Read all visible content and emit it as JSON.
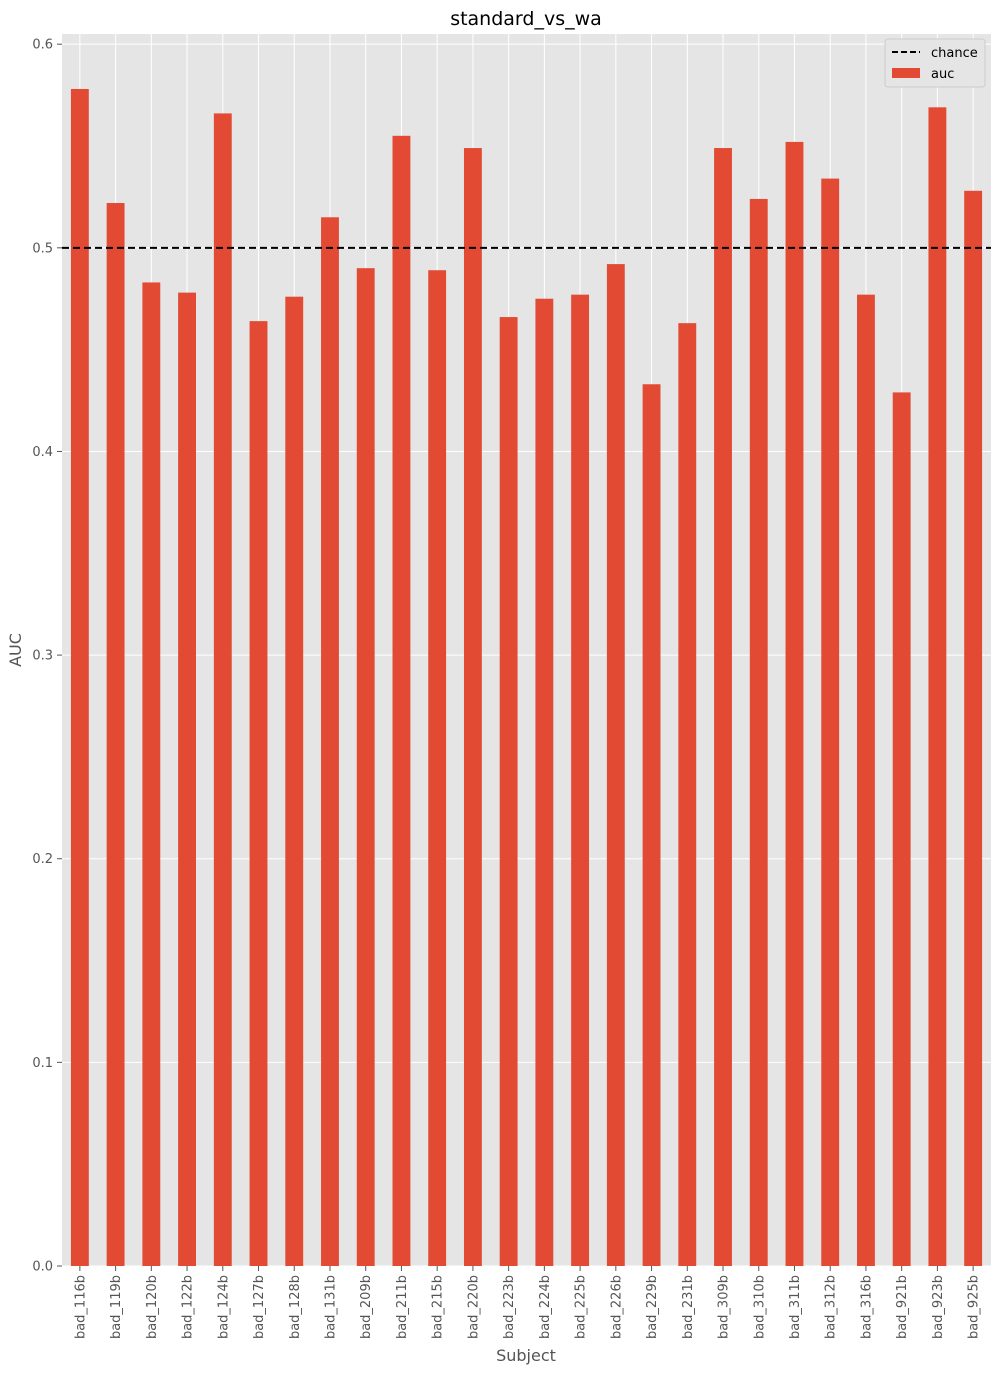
{
  "chart_data": {
    "type": "bar",
    "title": "standard_vs_wa",
    "xlabel": "Subject",
    "ylabel": "AUC",
    "ylim": [
      0,
      0.605
    ],
    "yticks": [
      0.0,
      0.1,
      0.2,
      0.3,
      0.4,
      0.5,
      0.6
    ],
    "ytick_labels": [
      "0.0",
      "0.1",
      "0.2",
      "0.3",
      "0.4",
      "0.5",
      "0.6"
    ],
    "grid": true,
    "legend_position": "top-right",
    "chance_level": 0.5,
    "categories": [
      "bad_116b",
      "bad_119b",
      "bad_120b",
      "bad_122b",
      "bad_124b",
      "bad_127b",
      "bad_128b",
      "bad_131b",
      "bad_209b",
      "bad_211b",
      "bad_215b",
      "bad_220b",
      "bad_223b",
      "bad_224b",
      "bad_225b",
      "bad_226b",
      "bad_229b",
      "bad_231b",
      "bad_309b",
      "bad_310b",
      "bad_311b",
      "bad_312b",
      "bad_316b",
      "bad_921b",
      "bad_923b",
      "bad_925b"
    ],
    "series": [
      {
        "name": "auc",
        "color": "#E24A33",
        "values": [
          0.578,
          0.522,
          0.483,
          0.478,
          0.566,
          0.464,
          0.476,
          0.515,
          0.49,
          0.555,
          0.489,
          0.549,
          0.466,
          0.475,
          0.477,
          0.492,
          0.433,
          0.463,
          0.549,
          0.524,
          0.552,
          0.534,
          0.477,
          0.429,
          0.569,
          0.528
        ]
      }
    ],
    "reference_lines": [
      {
        "name": "chance",
        "value": 0.5,
        "style": "dashed",
        "color": "#000000"
      }
    ],
    "legend": [
      "chance",
      "auc"
    ]
  }
}
